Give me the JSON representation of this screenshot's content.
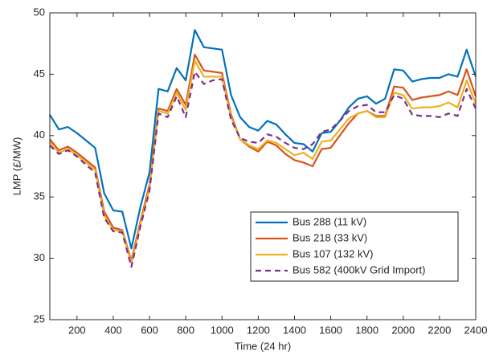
{
  "chart_data": {
    "type": "line",
    "x_label": "Time (24 hr)",
    "y_label": "LMP (£/MW)",
    "x": [
      50,
      100,
      150,
      200,
      250,
      300,
      350,
      400,
      450,
      500,
      550,
      600,
      650,
      700,
      750,
      800,
      850,
      900,
      950,
      1000,
      1050,
      1100,
      1150,
      1200,
      1250,
      1300,
      1350,
      1400,
      1450,
      1500,
      1550,
      1600,
      1650,
      1700,
      1750,
      1800,
      1850,
      1900,
      1950,
      2000,
      2050,
      2100,
      2150,
      2200,
      2250,
      2300,
      2350,
      2400
    ],
    "xlim": [
      50,
      2400
    ],
    "xticks": [
      200,
      400,
      600,
      800,
      1000,
      1200,
      1400,
      1600,
      1800,
      2000,
      2200,
      2400
    ],
    "ylim": [
      25,
      50
    ],
    "yticks": [
      25,
      30,
      35,
      40,
      45,
      50
    ],
    "legend_location": "southeast",
    "series": [
      {
        "name": "Bus 288 (11 kV)",
        "color": "#0072BD",
        "linestyle": "solid",
        "values": [
          41.7,
          40.5,
          40.7,
          40.2,
          39.6,
          39.0,
          35.3,
          33.9,
          33.8,
          30.8,
          34.2,
          37.0,
          43.8,
          43.6,
          45.5,
          44.5,
          48.6,
          47.2,
          47.1,
          47.0,
          43.3,
          41.5,
          40.7,
          40.4,
          41.2,
          40.9,
          40.1,
          39.4,
          39.3,
          38.7,
          40.2,
          40.3,
          41.2,
          42.3,
          43.0,
          43.2,
          42.6,
          43.0,
          45.4,
          45.3,
          44.4,
          44.6,
          44.7,
          44.7,
          45.0,
          44.8,
          47.0,
          44.8
        ]
      },
      {
        "name": "Bus 218 (33 kV)",
        "color": "#D95319",
        "linestyle": "solid",
        "values": [
          39.7,
          38.8,
          39.1,
          38.6,
          38.0,
          37.4,
          33.8,
          32.5,
          32.3,
          29.8,
          33.0,
          36.0,
          42.2,
          42.0,
          43.8,
          42.5,
          46.6,
          45.3,
          45.2,
          45.1,
          41.7,
          39.7,
          39.1,
          38.7,
          39.5,
          39.2,
          38.5,
          38.0,
          37.8,
          37.5,
          38.9,
          39.0,
          40.0,
          41.0,
          41.8,
          42.0,
          41.6,
          41.6,
          44.0,
          43.9,
          42.9,
          43.1,
          43.2,
          43.3,
          43.6,
          43.3,
          45.4,
          43.2
        ]
      },
      {
        "name": "Bus 107 (132 kV)",
        "color": "#EDB120",
        "linestyle": "solid",
        "values": [
          39.5,
          38.6,
          38.9,
          38.4,
          37.8,
          37.2,
          33.5,
          32.3,
          32.2,
          29.6,
          32.8,
          35.7,
          42.0,
          41.8,
          43.5,
          42.1,
          46.1,
          44.8,
          44.8,
          44.8,
          41.5,
          39.7,
          39.2,
          38.9,
          39.6,
          39.4,
          38.9,
          38.4,
          38.6,
          38.1,
          39.5,
          39.6,
          40.5,
          41.4,
          41.8,
          42.0,
          41.5,
          41.5,
          43.5,
          43.3,
          42.2,
          42.3,
          42.3,
          42.4,
          42.7,
          42.3,
          44.5,
          42.6
        ]
      },
      {
        "name": "Bus 582 (400kV Grid Import)",
        "color": "#7E2F8E",
        "linestyle": "dashed",
        "values": [
          39.2,
          38.5,
          38.8,
          38.3,
          37.6,
          37.0,
          33.3,
          32.2,
          32.1,
          29.3,
          32.6,
          35.5,
          41.8,
          41.5,
          43.2,
          41.5,
          45.2,
          44.2,
          44.5,
          44.6,
          41.3,
          39.8,
          39.5,
          39.4,
          40.1,
          39.9,
          39.4,
          39.0,
          38.9,
          39.3,
          40.3,
          40.5,
          41.2,
          42.0,
          42.4,
          42.5,
          41.9,
          41.9,
          43.3,
          43.0,
          41.7,
          41.6,
          41.6,
          41.5,
          41.8,
          41.6,
          43.8,
          42.2
        ]
      }
    ]
  }
}
